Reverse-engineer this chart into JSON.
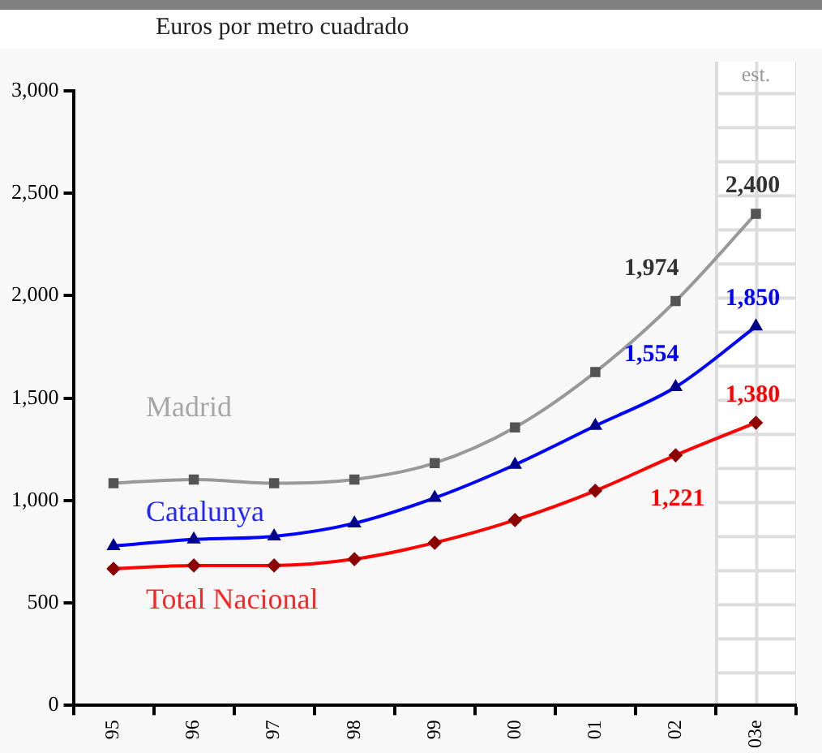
{
  "chart_data": {
    "type": "line",
    "title": "Euros por metro cuadrado",
    "categories": [
      "95",
      "96",
      "97",
      "98",
      "99",
      "00",
      "01",
      "02",
      "03e"
    ],
    "series": [
      {
        "name": "Madrid",
        "color": "#999999",
        "marker": "square",
        "values": [
          1085,
          1103,
          1085,
          1103,
          1183,
          1357,
          1627,
          1974,
          2400
        ],
        "value_labels": [
          null,
          null,
          null,
          null,
          null,
          null,
          null,
          "1,974",
          "2,400"
        ]
      },
      {
        "name": "Catalunya",
        "color": "#0000ff",
        "marker": "triangle",
        "values": [
          778,
          810,
          825,
          889,
          1013,
          1175,
          1365,
          1554,
          1850
        ],
        "value_labels": [
          null,
          null,
          null,
          null,
          null,
          null,
          null,
          "1,554",
          "1,850"
        ]
      },
      {
        "name": "Total Nacional",
        "color": "#ff0000",
        "marker": "diamond",
        "values": [
          667,
          683,
          683,
          714,
          794,
          905,
          1048,
          1221,
          1380
        ],
        "value_labels": [
          null,
          null,
          null,
          null,
          null,
          null,
          null,
          "1,221",
          "1,380"
        ]
      }
    ],
    "ylim": [
      0,
      3000
    ],
    "yticks": [
      0,
      500,
      {
        "value": 1000,
        "label": "1,000"
      },
      {
        "value": 1500,
        "label": "1,500"
      },
      {
        "value": 2000,
        "label": "2,000"
      },
      {
        "value": 2500,
        "label": "2,500"
      },
      {
        "value": 3000,
        "label": "3,000"
      }
    ],
    "bands": [
      {
        "axis": "x",
        "from": "03e",
        "to": "03e",
        "label": "est.",
        "color": "#ffffff"
      }
    ],
    "grid": false,
    "legend": false
  }
}
